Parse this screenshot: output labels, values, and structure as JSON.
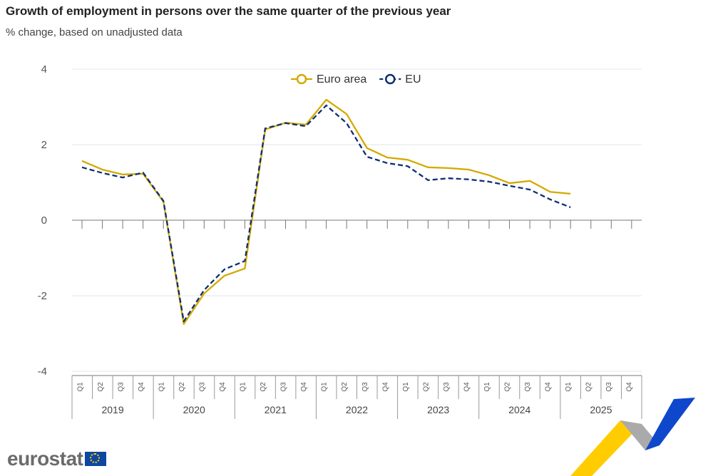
{
  "chart_data": {
    "type": "line",
    "title": "Growth of employment in persons over the same quarter of the previous year",
    "subtitle": "% change, based on unadjusted data",
    "years": [
      "2019",
      "2020",
      "2021",
      "2022",
      "2023",
      "2024",
      "2025"
    ],
    "quarters": [
      "Q1",
      "Q2",
      "Q3",
      "Q4"
    ],
    "ylim": [
      -4,
      4
    ],
    "yticks": [
      4,
      2,
      0,
      -2,
      -4
    ],
    "grid": true,
    "legend_position": "top-center",
    "series": [
      {
        "name": "Euro area",
        "color": "#d4a900",
        "style": "solid",
        "values": [
          1.57,
          1.34,
          1.21,
          1.23,
          0.49,
          -2.75,
          -1.94,
          -1.47,
          -1.28,
          2.4,
          2.58,
          2.53,
          3.19,
          2.81,
          1.91,
          1.66,
          1.6,
          1.4,
          1.38,
          1.34,
          1.19,
          0.98,
          1.04,
          0.75,
          0.7
        ]
      },
      {
        "name": "EU",
        "color": "#0e2f75",
        "style": "dashed",
        "values": [
          1.4,
          1.25,
          1.13,
          1.26,
          0.51,
          -2.68,
          -1.85,
          -1.3,
          -1.08,
          2.43,
          2.57,
          2.49,
          3.04,
          2.57,
          1.68,
          1.51,
          1.43,
          1.06,
          1.11,
          1.08,
          1.02,
          0.91,
          0.81,
          0.55,
          0.34
        ]
      }
    ]
  },
  "branding": {
    "logo": "eurostat"
  }
}
